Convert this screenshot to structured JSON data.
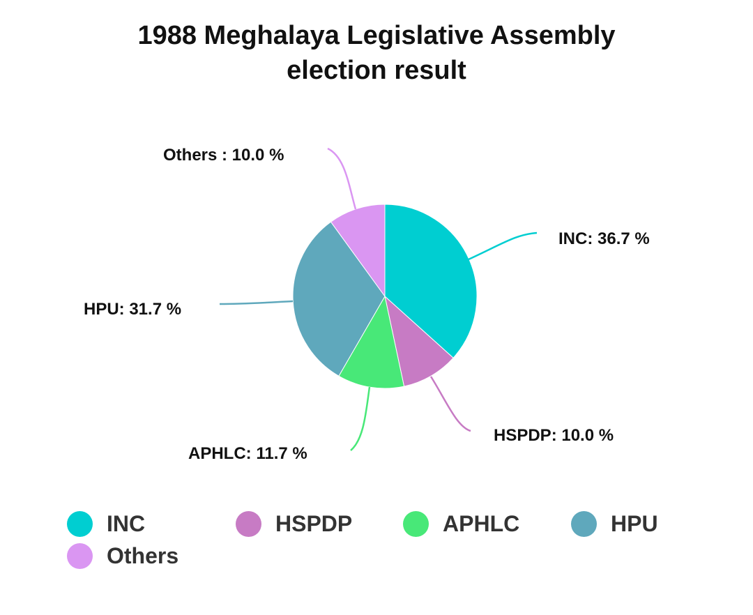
{
  "title": "1988 Meghalaya Legislative Assembly election result",
  "title_lines": [
    "1988 Meghalaya Legislative Assembly",
    "election result"
  ],
  "chart_data": {
    "type": "pie",
    "title": "1988 Meghalaya Legislative Assembly election result",
    "categories": [
      "INC",
      "HSPDP",
      "APHLC",
      "HPU",
      "Others"
    ],
    "values": [
      36.7,
      10.0,
      11.7,
      31.7,
      10.0
    ],
    "colors": [
      "#00CED1",
      "#C77BC4",
      "#48E878",
      "#5FA8BC",
      "#DA96F2"
    ],
    "labels": [
      "INC: 36.7 %",
      "HSPDP: 10.0 %",
      "APHLC: 11.7 %",
      "HPU: 31.7 %",
      "Others : 10.0 %"
    ],
    "start_angle": "top, clockwise",
    "legend_position": "bottom"
  },
  "legend": [
    {
      "label": "INC",
      "color": "#00CED1"
    },
    {
      "label": "HSPDP",
      "color": "#C77BC4"
    },
    {
      "label": "APHLC",
      "color": "#48E878"
    },
    {
      "label": "HPU",
      "color": "#5FA8BC"
    },
    {
      "label": "Others",
      "color": "#DA96F2"
    }
  ]
}
